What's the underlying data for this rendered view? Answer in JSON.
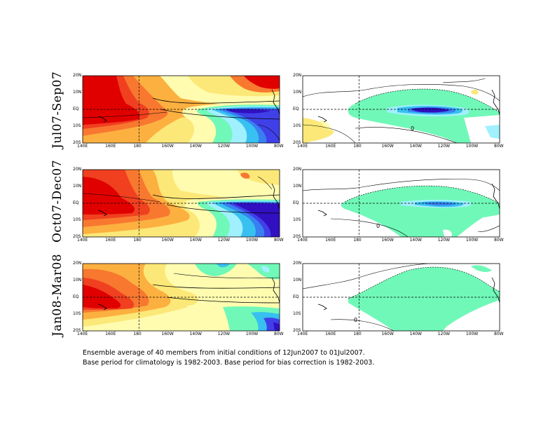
{
  "figure": {
    "rows": [
      {
        "label": "Jul07-Sep07"
      },
      {
        "label": "Oct07-Dec07"
      },
      {
        "label": "Jan08-Mar08"
      }
    ],
    "lat_ticks": [
      "20N",
      "10N",
      "EQ",
      "10S",
      "20S"
    ],
    "lon_ticks": [
      "140E",
      "160E",
      "180",
      "160W",
      "140W",
      "120W",
      "100W",
      "80W"
    ],
    "contour_label": "0",
    "caption": {
      "line1": "Ensemble average of 40 members from initial conditions of 12Jun2007 to 01Jul2007.",
      "line2": "Base period for climatology is 1982-2003. Base period for bias correction is 1982-2003."
    },
    "colors": {
      "dark_red": "#e00000",
      "orange_red": "#f04020",
      "orange": "#f87830",
      "light_orange": "#fcb040",
      "yellow": "#fce878",
      "pale_yellow": "#fffcb0",
      "aqua_green": "#70f8b8",
      "cyan": "#a0f0ff",
      "light_blue": "#38c0f0",
      "blue": "#3880f0",
      "deep_blue": "#4040e8",
      "violet": "#3010c0"
    }
  }
}
